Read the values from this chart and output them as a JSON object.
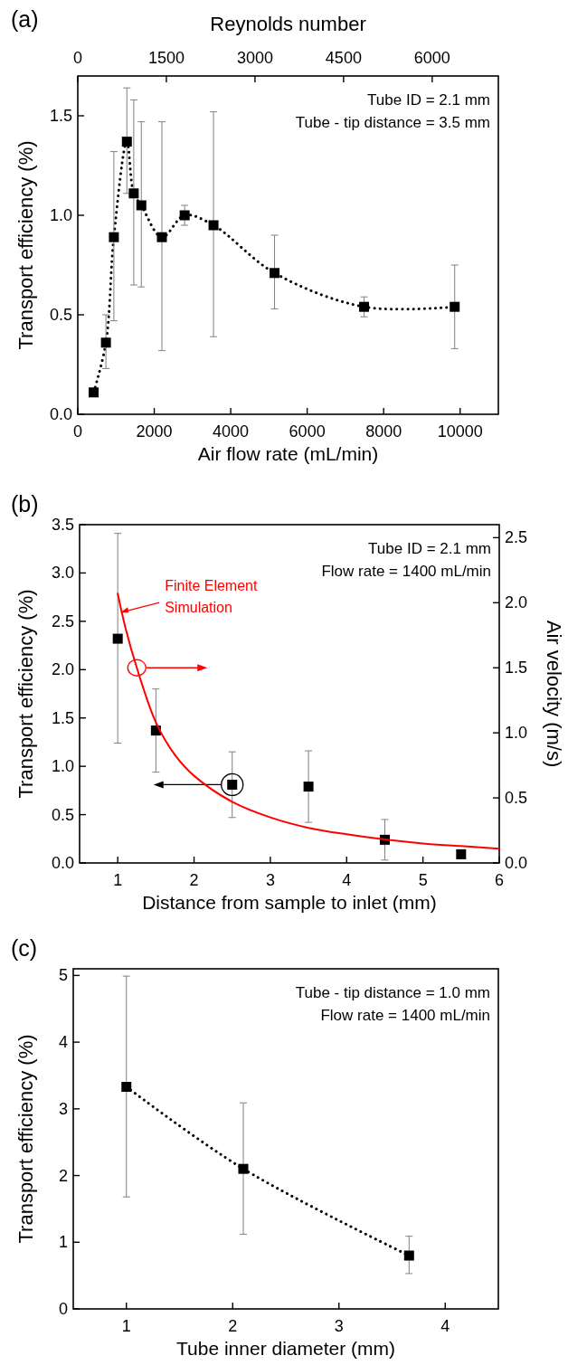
{
  "chart_data": [
    {
      "type": "line",
      "title": "(a)",
      "xlabel": "Air flow rate (mL/min)",
      "ylabel": "Transport efficiency (%)",
      "x2label": "Reynolds number",
      "xlim": [
        0,
        11000
      ],
      "xticks": [
        0,
        2000,
        4000,
        6000,
        8000,
        10000
      ],
      "x2lim": [
        0,
        7120
      ],
      "x2ticks": [
        0,
        1500,
        3000,
        4500,
        6000
      ],
      "ylim": [
        0,
        1.7
      ],
      "yticks": [
        {
          "value": 0,
          "label": "0.0"
        },
        {
          "value": 0.5,
          "label": "0.5"
        },
        {
          "value": 1,
          "label": "1.0"
        },
        {
          "value": 1.5,
          "label": "1.5"
        }
      ],
      "annotations": [
        "Tube ID = 2.1 mm",
        "Tube - tip distance = 3.5 mm"
      ],
      "marker": "square",
      "line_style": "dotted",
      "series": [
        {
          "color": "#000000",
          "x": [
            415,
            736,
            944,
            1284,
            1464,
            1662,
            2200,
            2795,
            3550,
            5146,
            7488,
            9858
          ],
          "values": [
            0.11,
            0.36,
            0.89,
            1.37,
            1.11,
            1.05,
            0.89,
            1.0,
            0.95,
            0.71,
            0.54,
            0.54
          ],
          "errors": [
            null,
            [
              0.23,
              0.5
            ],
            [
              0.47,
              1.32
            ],
            [
              1.11,
              1.64
            ],
            [
              0.65,
              1.58
            ],
            [
              0.64,
              1.47
            ],
            [
              0.32,
              1.47
            ],
            [
              0.95,
              1.05
            ],
            [
              0.39,
              1.52
            ],
            [
              0.53,
              0.9
            ],
            [
              0.49,
              0.59
            ],
            [
              0.33,
              0.75
            ]
          ]
        }
      ]
    },
    {
      "type": "scatter",
      "title": "(b)",
      "xlabel": "Distance from sample to inlet (mm)",
      "ylabel": "Transport efficiency (%)",
      "y2label": "Air velocity (m/s)",
      "xlim": [
        0.5,
        6
      ],
      "xticks": [
        1,
        2,
        3,
        4,
        5,
        6
      ],
      "ylim": [
        0,
        3.5
      ],
      "yticks": [
        {
          "value": 0,
          "label": "0.0"
        },
        {
          "value": 0.5,
          "label": "0.5"
        },
        {
          "value": 1,
          "label": "1.0"
        },
        {
          "value": 1.5,
          "label": "1.5"
        },
        {
          "value": 2,
          "label": "2.0"
        },
        {
          "value": 2.5,
          "label": "2.5"
        },
        {
          "value": 3,
          "label": "3.0"
        },
        {
          "value": 3.5,
          "label": "3.5"
        }
      ],
      "y2lim": [
        0,
        2.6
      ],
      "y2ticks": [
        {
          "value": 0,
          "label": "0.0"
        },
        {
          "value": 0.5,
          "label": "0.5"
        },
        {
          "value": 1,
          "label": "1.0"
        },
        {
          "value": 1.5,
          "label": "1.5"
        },
        {
          "value": 2,
          "label": "2.0"
        },
        {
          "value": 2.5,
          "label": "2.5"
        }
      ],
      "annotations": [
        "Tube ID = 2.1 mm",
        "Flow rate = 1400 mL/min"
      ],
      "marker": "square",
      "series": [
        {
          "color": "#000000",
          "x": [
            1,
            1.5,
            2.5,
            3.5,
            4.5,
            5.5
          ],
          "values": [
            2.32,
            1.37,
            0.81,
            0.79,
            0.24,
            0.09
          ],
          "errors": [
            [
              1.24,
              3.41
            ],
            [
              0.94,
              1.8
            ],
            [
              0.47,
              1.15
            ],
            [
              0.42,
              1.16
            ],
            [
              0.03,
              0.45
            ],
            null
          ]
        },
        {
          "type": "line",
          "name": "Finite Element Simulation",
          "axis": "y2",
          "color": "#ff0000",
          "marker": "none",
          "line_style": "solid",
          "x": [
            1,
            1.1,
            1.25,
            1.5,
            1.75,
            2,
            2.5,
            3,
            3.5,
            4,
            4.5,
            5,
            5.5,
            6
          ],
          "values": [
            2.07,
            1.81,
            1.5,
            1.08,
            0.83,
            0.67,
            0.47,
            0.35,
            0.27,
            0.22,
            0.18,
            0.15,
            0.13,
            0.11
          ]
        }
      ]
    },
    {
      "type": "line",
      "title": "(c)",
      "xlabel": "Tube inner diameter (mm)",
      "ylabel": "Transport efficiency (%)",
      "xlim": [
        0.5,
        4.5
      ],
      "xticks": [
        1,
        2,
        3,
        4
      ],
      "ylim": [
        0,
        5.1
      ],
      "yticks": [
        0,
        1,
        2,
        3,
        4,
        5
      ],
      "annotations": [
        "Tube - tip distance = 1.0 mm",
        "Flow rate = 1400 mL/min"
      ],
      "marker": "square",
      "line_style": "dotted",
      "series": [
        {
          "color": "#000000",
          "x": [
            1,
            2.1,
            3.66
          ],
          "values": [
            3.33,
            2.1,
            0.8
          ],
          "errors": [
            [
              1.68,
              4.99
            ],
            [
              1.12,
              3.09
            ],
            [
              0.53,
              1.09
            ]
          ]
        }
      ]
    }
  ]
}
